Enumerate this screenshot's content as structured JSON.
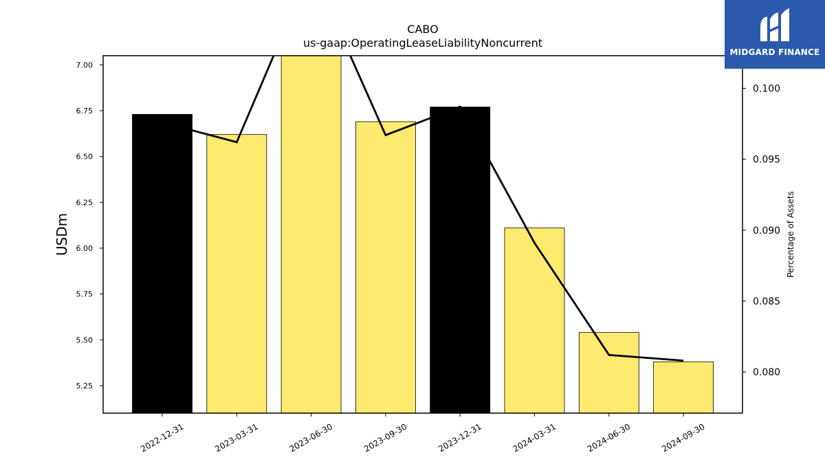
{
  "chart_data": {
    "type": "bar",
    "title": "CABO",
    "subtitle": "us-gaap:OperatingLeaseLiabilityNoncurrent",
    "ylabel": "USDm",
    "ylabel_right": "Percentage of Assets",
    "categories": [
      "2022-12-31",
      "2023-03-31",
      "2023-06-30",
      "2023-09-30",
      "2023-12-31",
      "2024-03-31",
      "2024-06-30",
      "2024-09-30"
    ],
    "series": [
      {
        "type": "bar",
        "axis": "left",
        "values": [
          6.73,
          6.62,
          7.12,
          6.69,
          6.77,
          6.11,
          5.54,
          5.38
        ],
        "colors": [
          "#000000",
          "#fdea6f",
          "#fdea6f",
          "#fdea6f",
          "#000000",
          "#fdea6f",
          "#fdea6f",
          "#fdea6f"
        ]
      },
      {
        "type": "line",
        "axis": "right",
        "values": [
          0.0976,
          0.0962,
          0.1085,
          0.0967,
          0.0987,
          0.0891,
          0.0812,
          0.0808
        ],
        "color": "#000000"
      }
    ],
    "ylim": [
      5.1,
      7.05
    ],
    "ylim_right": [
      0.0771,
      0.1023
    ],
    "yticks": [
      "5.25",
      "5.50",
      "5.75",
      "6.00",
      "6.25",
      "6.50",
      "6.75",
      "7.00"
    ],
    "yticks_right": [
      "0.080",
      "0.085",
      "0.090",
      "0.095",
      "0.100"
    ],
    "grid": false,
    "legend": "none"
  },
  "logo": {
    "text": "MIDGARD FINANCE",
    "background": "#2b5aad"
  }
}
